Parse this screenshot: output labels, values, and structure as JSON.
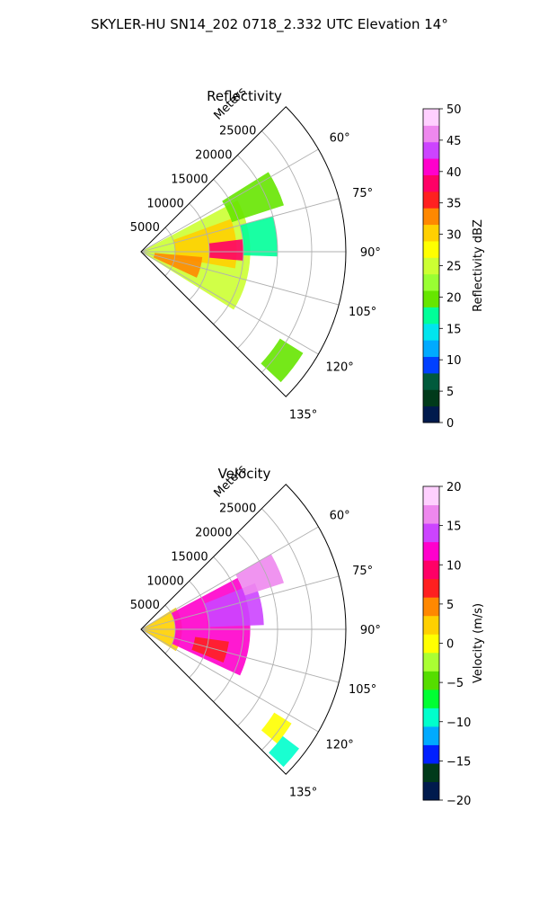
{
  "figure": {
    "title": "SKYLER-HU  SN14_202  0718_2.332 UTC Elevation 14°"
  },
  "chart_data": [
    {
      "type": "heatmap",
      "title": "Reflectivity",
      "radial_label": "Meters",
      "range_ticks": [
        "5000",
        "10000",
        "15000",
        "20000",
        "25000"
      ],
      "range_tick_values": [
        5000,
        10000,
        15000,
        20000,
        25000
      ],
      "range_max": 30000,
      "angle_ticks": [
        "60°",
        "75°",
        "90°",
        "105°",
        "120°",
        "135°"
      ],
      "angle_tick_values": [
        60,
        75,
        90,
        105,
        120,
        135
      ],
      "theta_range": [
        45,
        135
      ],
      "grid": true,
      "colorbar": {
        "label": "Reflectivity dBZ",
        "min": 0,
        "max": 50,
        "ticks": [
          "0",
          "5",
          "10",
          "15",
          "20",
          "25",
          "30",
          "35",
          "40",
          "45",
          "50"
        ],
        "tick_values": [
          0,
          5,
          10,
          15,
          20,
          25,
          30,
          35,
          40,
          45,
          50
        ],
        "colors": [
          "#001a4d",
          "#003a1a",
          "#005a3c",
          "#0040ff",
          "#00aaff",
          "#00e5ee",
          "#00ff99",
          "#66e600",
          "#99ff33",
          "#ccff33",
          "#ffff00",
          "#ffd000",
          "#ff8800",
          "#ff2020",
          "#ff0066",
          "#ff00cc",
          "#cc44ff",
          "#ee88ee",
          "#ffd0ff"
        ]
      },
      "echo_regions": [
        {
          "r": [
            0,
            16000
          ],
          "theta": [
            62,
            122
          ],
          "value": 24
        },
        {
          "r": [
            5000,
            14000
          ],
          "theta": [
            70,
            100
          ],
          "value": 30
        },
        {
          "r": [
            2000,
            9000
          ],
          "theta": [
            95,
            115
          ],
          "value": 34
        },
        {
          "r": [
            10000,
            15000
          ],
          "theta": [
            83,
            95
          ],
          "value": 38
        },
        {
          "r": [
            14000,
            22000
          ],
          "theta": [
            58,
            72
          ],
          "value": 20
        },
        {
          "r": [
            15000,
            20000
          ],
          "theta": [
            75,
            92
          ],
          "value": 16
        },
        {
          "r": [
            24000,
            28000
          ],
          "theta": [
            122,
            133
          ],
          "value": 20
        }
      ]
    },
    {
      "type": "heatmap",
      "title": "Velocity",
      "radial_label": "Meters",
      "range_ticks": [
        "5000",
        "10000",
        "15000",
        "20000",
        "25000"
      ],
      "range_tick_values": [
        5000,
        10000,
        15000,
        20000,
        25000
      ],
      "range_max": 30000,
      "angle_ticks": [
        "60°",
        "75°",
        "90°",
        "105°",
        "120°",
        "135°"
      ],
      "angle_tick_values": [
        60,
        75,
        90,
        105,
        120,
        135
      ],
      "theta_range": [
        45,
        135
      ],
      "grid": true,
      "colorbar": {
        "label": "Velocity (m/s)",
        "min": -20,
        "max": 20,
        "ticks": [
          "−20",
          "−15",
          "−10",
          "−5",
          "0",
          "5",
          "10",
          "15",
          "20"
        ],
        "tick_values": [
          -20,
          -15,
          -10,
          -5,
          0,
          5,
          10,
          15,
          20
        ],
        "colors": [
          "#001a4d",
          "#003a1a",
          "#0020ff",
          "#00aaff",
          "#00ffcc",
          "#00ff33",
          "#55dd00",
          "#aaff33",
          "#ffff00",
          "#ffd000",
          "#ff8800",
          "#ff2020",
          "#ff0066",
          "#ff00cc",
          "#cc44ff",
          "#ee88ee",
          "#ffd0ff"
        ]
      },
      "echo_regions": [
        {
          "r": [
            0,
            6000
          ],
          "theta": [
            58,
            122
          ],
          "value": 3
        },
        {
          "r": [
            5000,
            16000
          ],
          "theta": [
            62,
            115
          ],
          "value": 11
        },
        {
          "r": [
            10000,
            18000
          ],
          "theta": [
            68,
            88
          ],
          "value": 13
        },
        {
          "r": [
            16000,
            22000
          ],
          "theta": [
            60,
            72
          ],
          "value": 16
        },
        {
          "r": [
            8000,
            13000
          ],
          "theta": [
            98,
            112
          ],
          "value": 8
        },
        {
          "r": [
            23000,
            26000
          ],
          "theta": [
            122,
            130
          ],
          "value": 1
        },
        {
          "r": [
            26000,
            29000
          ],
          "theta": [
            127,
            134
          ],
          "value": -9
        }
      ]
    }
  ]
}
